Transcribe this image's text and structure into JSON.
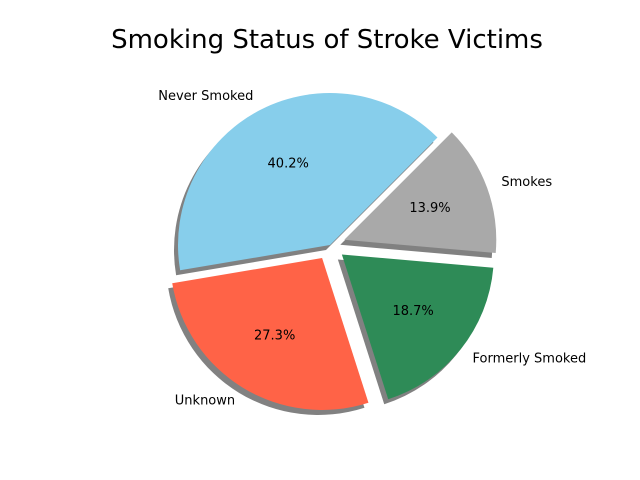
{
  "chart_data": {
    "type": "pie",
    "title": "Smoking Status of Stroke Victims",
    "labels": [
      "Never Smoked",
      "Unknown",
      "Formerly Smoked",
      "Smokes"
    ],
    "values": [
      40.2,
      27.3,
      18.7,
      13.9
    ],
    "value_labels": [
      "40.2%",
      "27.3%",
      "18.7%",
      "13.9%"
    ],
    "colors": [
      "#87CEEB",
      "#FF6347",
      "#2E8B57",
      "#A9A9A9"
    ],
    "start_angle_deg": 45,
    "direction": "counterclockwise",
    "shadow": true,
    "explode": [
      0.0,
      0.1,
      0.1,
      0.1
    ]
  }
}
